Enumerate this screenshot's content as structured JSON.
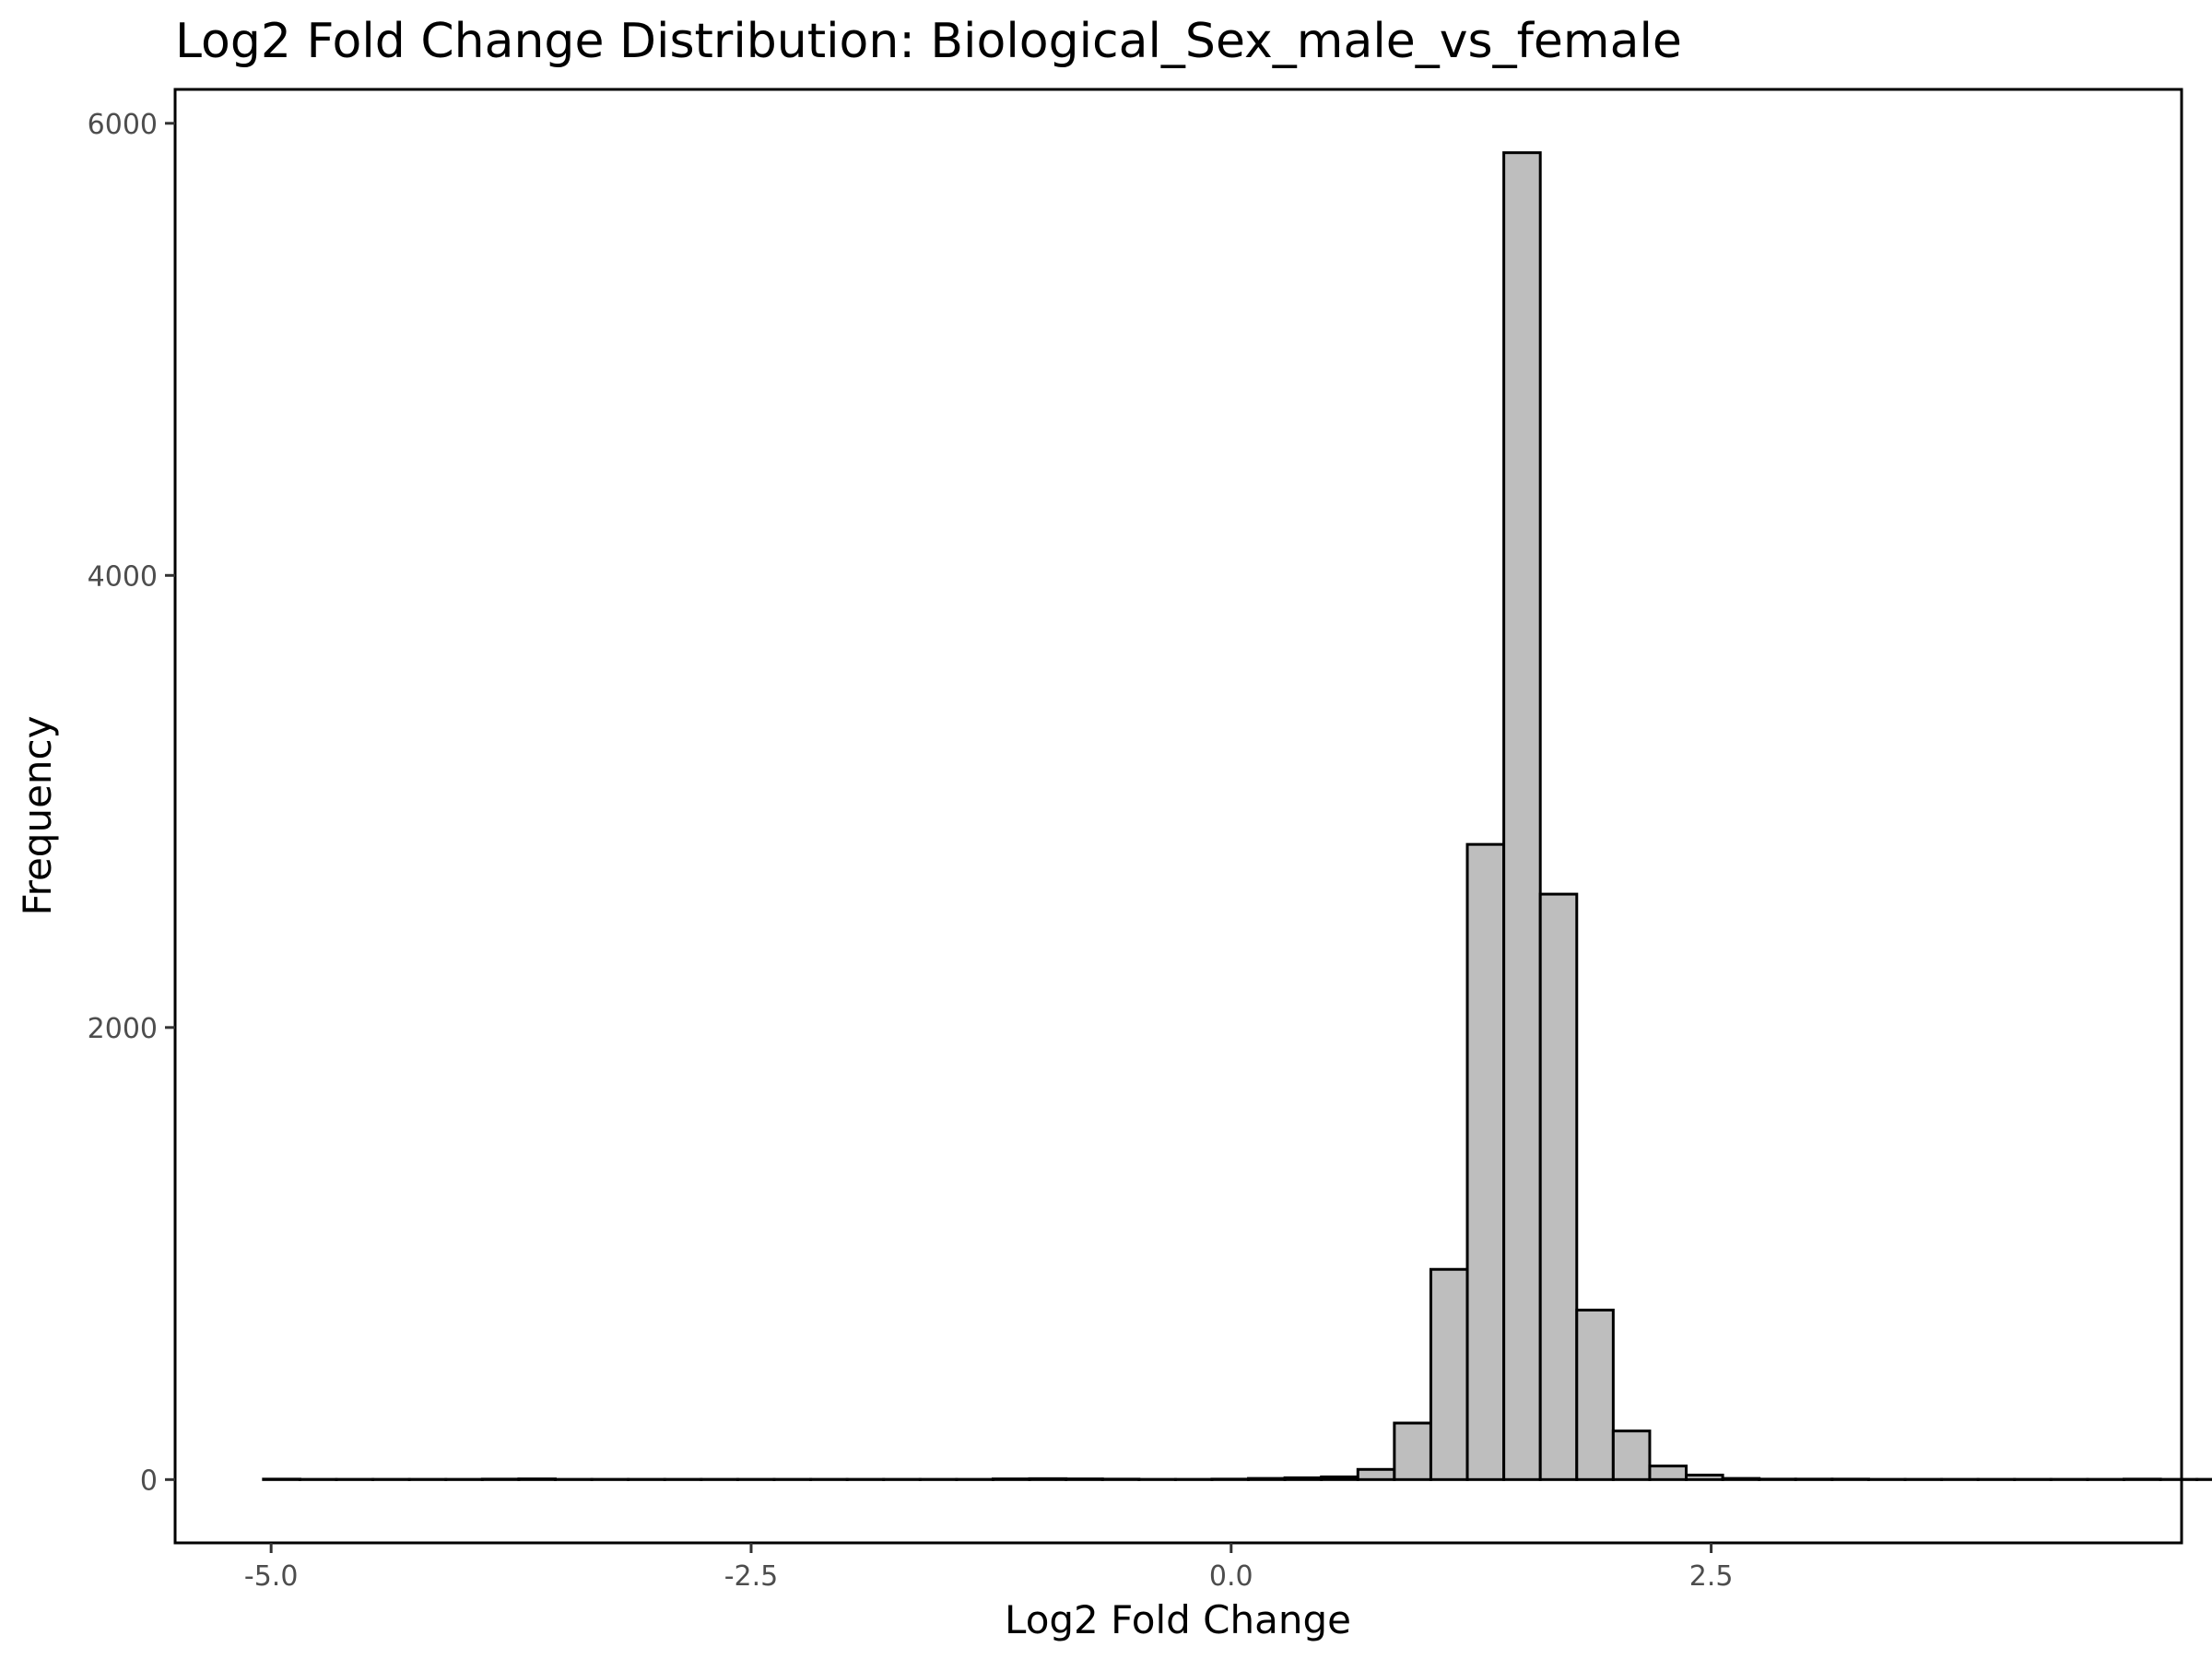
{
  "chart_data": {
    "type": "bar",
    "title": "Log2 Fold Change Distribution: Biological_Sex_male_vs_female",
    "xlabel": "Log2 Fold Change",
    "ylabel": "Frequency",
    "xlim": [
      -5.5,
      4.95
    ],
    "ylim": [
      -280,
      6150
    ],
    "x_ticks": [
      -5.0,
      -2.5,
      0.0,
      2.5
    ],
    "x_tick_labels": [
      "-5.0",
      "-2.5",
      "0.0",
      "2.5"
    ],
    "y_ticks": [
      0,
      2000,
      4000,
      6000
    ],
    "y_tick_labels": [
      "0",
      "2000",
      "4000",
      "6000"
    ],
    "bin_width": 0.19,
    "bin_start": -5.04,
    "values": [
      2,
      1,
      1,
      1,
      1,
      1,
      2,
      3,
      1,
      1,
      1,
      1,
      1,
      1,
      1,
      1,
      1,
      1,
      1,
      1,
      3,
      4,
      3,
      2,
      1,
      1,
      2,
      5,
      8,
      12,
      45,
      250,
      930,
      2810,
      5870,
      2590,
      750,
      215,
      60,
      20,
      5,
      2,
      2,
      2,
      1,
      1,
      1,
      1,
      1,
      1,
      1,
      2,
      1,
      1,
      2,
      3,
      2,
      1,
      1,
      1,
      1,
      1,
      2,
      1,
      1,
      1,
      1,
      1
    ],
    "bar_fill": "#bebebe",
    "bar_stroke": "#000000",
    "grid": false,
    "legend": "none"
  }
}
